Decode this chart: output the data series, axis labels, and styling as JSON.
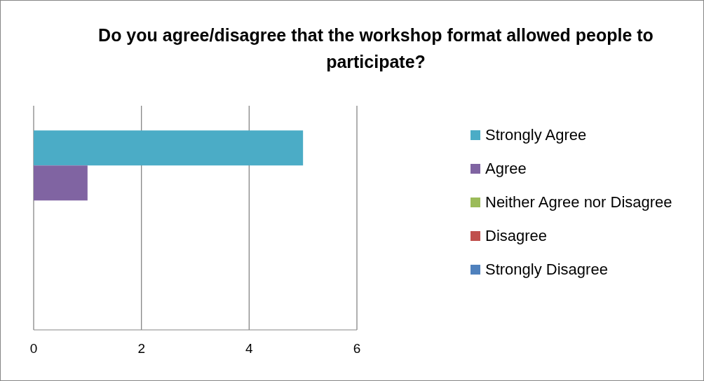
{
  "chart_data": {
    "type": "bar",
    "orientation": "horizontal",
    "title": "Do you agree/disagree that the workshop format allowed people to participate?",
    "categories": [
      null
    ],
    "series": [
      {
        "name": "Strongly Agree",
        "color": "#4bacc6",
        "values": [
          5
        ]
      },
      {
        "name": "Agree",
        "color": "#8064a2",
        "values": [
          1
        ]
      },
      {
        "name": "Neither Agree nor Disagree",
        "color": "#9bbb59",
        "values": [
          0
        ]
      },
      {
        "name": "Disagree",
        "color": "#c0504d",
        "values": [
          0
        ]
      },
      {
        "name": "Strongly Disagree",
        "color": "#4f81bd",
        "values": [
          0
        ]
      }
    ],
    "xlim": [
      0,
      6
    ],
    "xticks": [
      0,
      2,
      4,
      6
    ],
    "grid": "x",
    "legend": "right"
  }
}
